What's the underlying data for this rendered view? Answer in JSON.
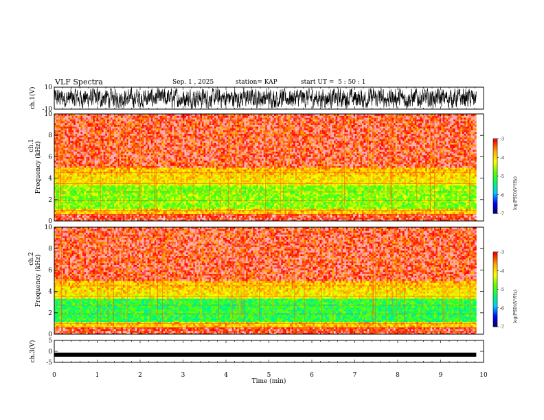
{
  "header": {
    "title": "VLF Spectra",
    "date": "Sep. 1 , 2025",
    "station": "station= KAP",
    "start_ut": "start UT =  5 : 50 : 1"
  },
  "chart_data": [
    {
      "type": "line",
      "ylabel": "ch.1(V)",
      "ylim": [
        -10,
        10
      ],
      "yticks": [
        "10",
        "-10"
      ],
      "xlim": [
        0,
        10
      ],
      "description_values": "noisy signal oscillating roughly between -8 and 8 V"
    },
    {
      "type": "heatmap",
      "ylabel_top": "ch.1",
      "ylabel": "Frequency (kHz)",
      "ylim": [
        0,
        10
      ],
      "yticks": [
        "0",
        "2",
        "4",
        "6",
        "8",
        "10"
      ],
      "xlim": [
        0,
        10
      ],
      "colorbar": {
        "label": "log(PSD)(V²/Hz)",
        "range": [
          -7,
          -3
        ],
        "ticks": [
          "-3",
          "-4",
          "-5",
          "-6",
          "-7"
        ]
      }
    },
    {
      "type": "heatmap",
      "ylabel_top": "ch.2",
      "ylabel": "Frequency (kHz)",
      "ylim": [
        0,
        10
      ],
      "yticks": [
        "0",
        "2",
        "4",
        "6",
        "8",
        "10"
      ],
      "xlim": [
        0,
        10
      ],
      "colorbar": {
        "label": "log(PSD)(V²/Hz)",
        "range": [
          -7,
          -3
        ],
        "ticks": [
          "-3",
          "-4",
          "-5",
          "-6",
          "-7"
        ]
      }
    },
    {
      "type": "line",
      "ylabel": "ch.3(V)",
      "ylim": [
        -5,
        5
      ],
      "yticks": [
        "5",
        "0",
        "-5"
      ],
      "xlim": [
        0,
        10
      ],
      "level": -1.5
    }
  ],
  "x_axis": {
    "label": "Time (min)",
    "ticks": [
      "0",
      "1",
      "2",
      "3",
      "4",
      "5",
      "6",
      "7",
      "8",
      "9",
      "10"
    ],
    "data_end": 9.83
  },
  "colors": {
    "line": "#000000",
    "colormap": [
      "#000066",
      "#0000ff",
      "#00ccff",
      "#00ff66",
      "#66ff00",
      "#ffff00",
      "#ffaa00",
      "#ff0000",
      "#ffffff"
    ]
  }
}
